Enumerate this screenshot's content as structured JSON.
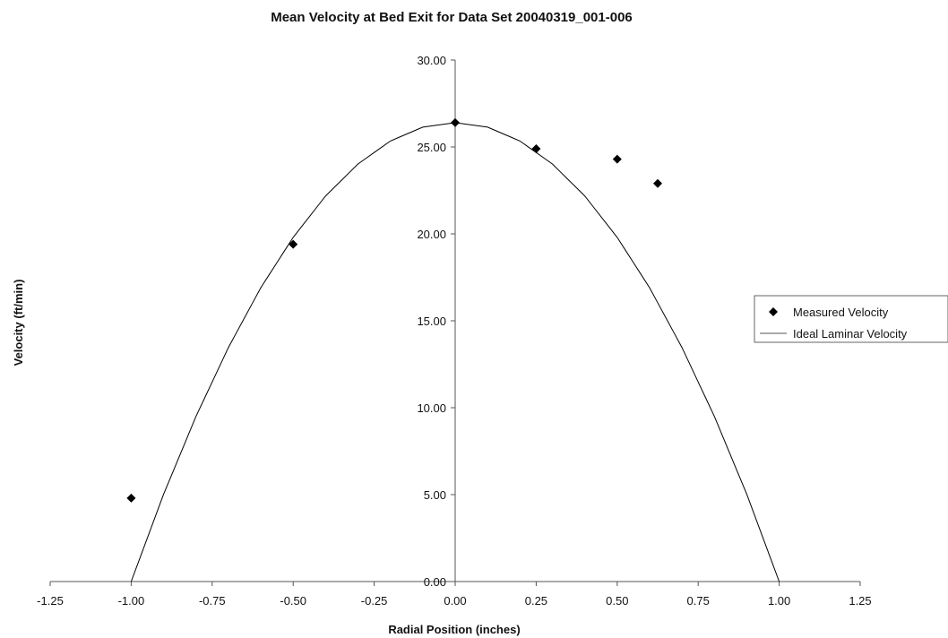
{
  "chart_data": {
    "type": "scatter",
    "title": "Mean Velocity at Bed Exit for Data Set 20040319_001-006",
    "xlabel": "Radial Position (inches)",
    "ylabel": "Velocity (ft/min)",
    "xlim": [
      -1.25,
      1.25
    ],
    "ylim": [
      0,
      30
    ],
    "xticks": [
      -1.25,
      -1.0,
      -0.75,
      -0.5,
      -0.25,
      0.0,
      0.25,
      0.5,
      0.75,
      1.0,
      1.25
    ],
    "xtick_labels": [
      "-1.25",
      "-1.00",
      "-0.75",
      "-0.50",
      "-0.25",
      "0.00",
      "0.25",
      "0.50",
      "0.75",
      "1.00",
      "1.25"
    ],
    "yticks": [
      0,
      5,
      10,
      15,
      20,
      25,
      30
    ],
    "ytick_labels": [
      "0.00",
      "5.00",
      "10.00",
      "15.00",
      "20.00",
      "25.00",
      "30.00"
    ],
    "grid": false,
    "legend_position": "right",
    "series": [
      {
        "name": "Measured Velocity",
        "kind": "scatter",
        "marker": "diamond",
        "color": "#000000",
        "x": [
          -1.0,
          -0.5,
          0.0,
          0.25,
          0.5,
          0.625
        ],
        "y": [
          4.8,
          19.4,
          26.4,
          24.9,
          24.3,
          22.9
        ]
      },
      {
        "name": "Ideal Laminar Velocity",
        "kind": "line",
        "color": "#000000",
        "x": [
          -1.0,
          -0.9,
          -0.8,
          -0.7,
          -0.6,
          -0.5,
          -0.4,
          -0.3,
          -0.2,
          -0.1,
          0.0,
          0.1,
          0.2,
          0.3,
          0.4,
          0.5,
          0.6,
          0.7,
          0.8,
          0.9,
          1.0
        ],
        "y": [
          0.0,
          5.02,
          9.5,
          13.46,
          16.9,
          19.8,
          22.18,
          24.02,
          25.34,
          26.14,
          26.4,
          26.14,
          25.34,
          24.02,
          22.18,
          19.8,
          16.9,
          13.46,
          9.5,
          5.02,
          0.0
        ]
      }
    ]
  }
}
